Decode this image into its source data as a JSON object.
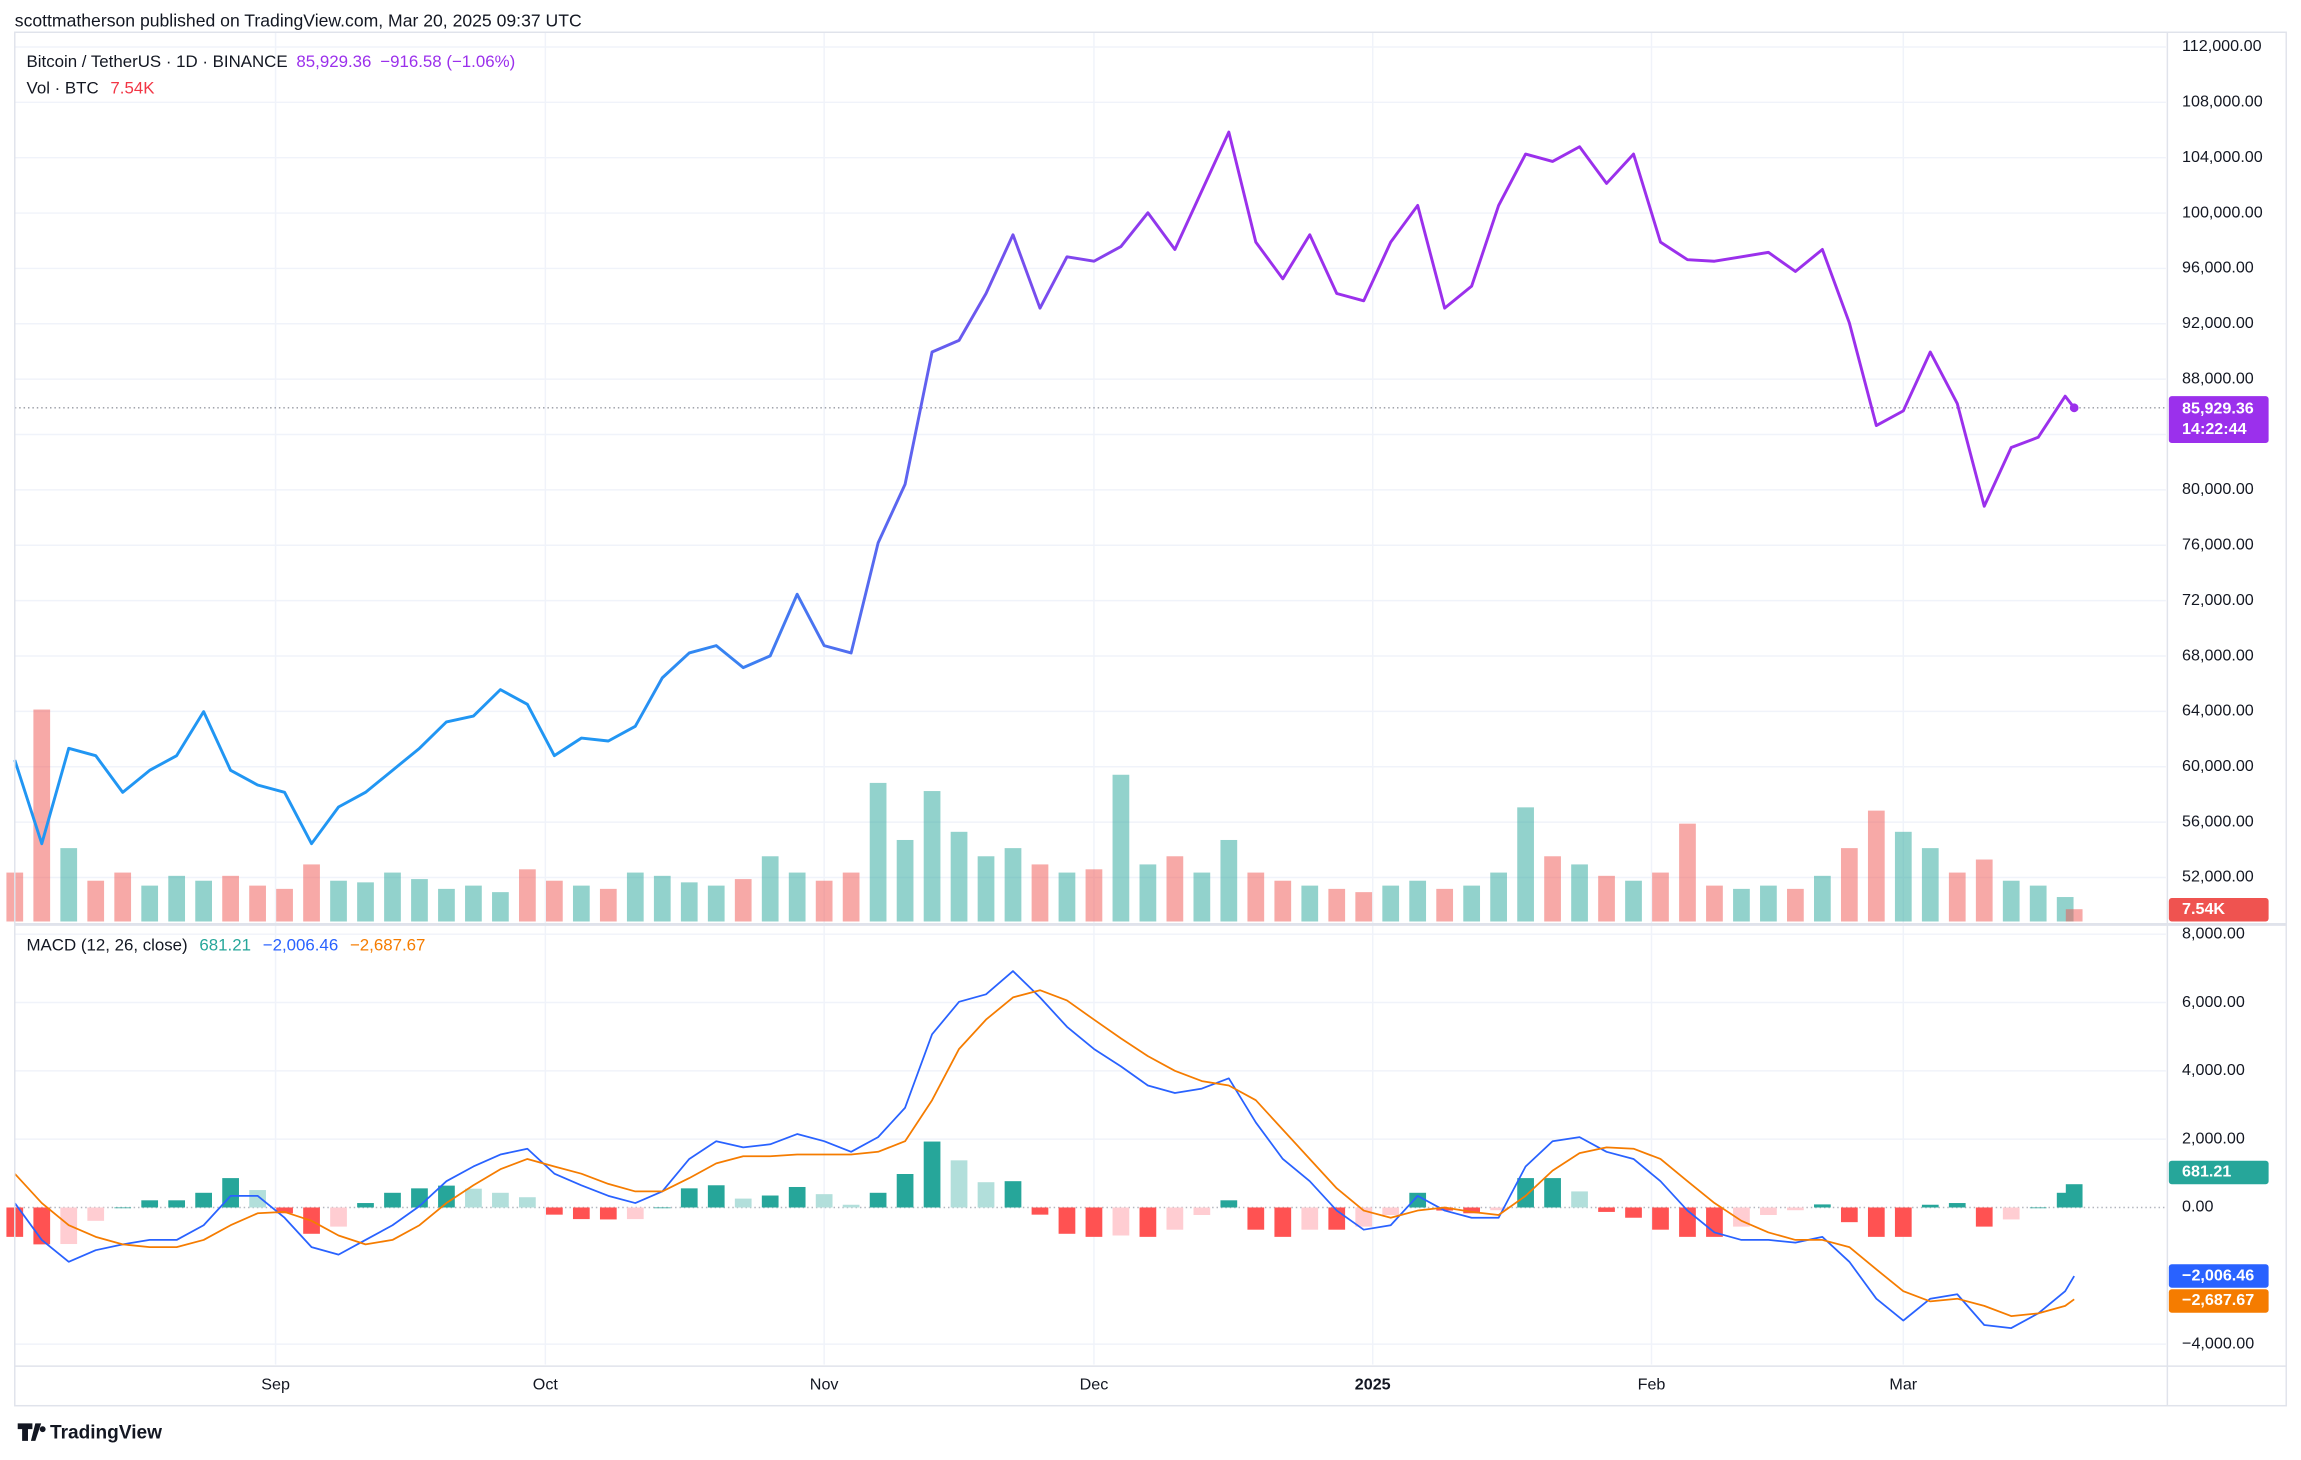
{
  "attribution": "scottmatherson published on TradingView.com, Mar 20, 2025 09:37 UTC",
  "brand": "TradingView",
  "chart_data": {
    "type": "line",
    "title": "Bitcoin / TetherUS · 1D · BINANCE",
    "last_label": "85,929.36",
    "change": "−916.58 (−1.06%)",
    "countdown": "14:22:44",
    "colors": [
      "#2196f3",
      "#9b30ec"
    ],
    "grid": true,
    "x": [
      0,
      3,
      6,
      9,
      12,
      15,
      18,
      21,
      24,
      27,
      30,
      33,
      36,
      39,
      42,
      45,
      48,
      51,
      54,
      57,
      60,
      63,
      66,
      69,
      72,
      75,
      78,
      81,
      84,
      87,
      90,
      93,
      96,
      99,
      102,
      105,
      108,
      111,
      114,
      117,
      120,
      123,
      126,
      129,
      132,
      135,
      138,
      141,
      144,
      147,
      150,
      153,
      156,
      159,
      162,
      165,
      168,
      171,
      174,
      177,
      180,
      183,
      186,
      189,
      192,
      195,
      198,
      201,
      204,
      207,
      210,
      213,
      216,
      219,
      222,
      225,
      228,
      229
    ],
    "xlim": [
      0,
      239.2
    ],
    "xticks": [
      {
        "value": 29,
        "label": "Sep"
      },
      {
        "value": 59,
        "label": "Oct"
      },
      {
        "value": 90,
        "label": "Nov"
      },
      {
        "value": 120,
        "label": "Dec"
      },
      {
        "value": 151,
        "label": "2025",
        "emphasis": true
      },
      {
        "value": 182,
        "label": "Feb"
      },
      {
        "value": 210,
        "label": "Mar"
      }
    ],
    "ylim": [
      48820,
      113060
    ],
    "yticks": [
      {
        "value": 52000,
        "label": "52,000.00"
      },
      {
        "value": 56000,
        "label": "56,000.00"
      },
      {
        "value": 60000,
        "label": "60,000.00"
      },
      {
        "value": 64000,
        "label": "64,000.00"
      },
      {
        "value": 68000,
        "label": "68,000.00"
      },
      {
        "value": 72000,
        "label": "72,000.00"
      },
      {
        "value": 76000,
        "label": "76,000.00"
      },
      {
        "value": 80000,
        "label": "80,000.00"
      },
      {
        "value": 84000,
        "label": "84,000.00"
      },
      {
        "value": 88000,
        "label": "88,000.00"
      },
      {
        "value": 92000,
        "label": "92,000.00"
      },
      {
        "value": 96000,
        "label": "96,000.00"
      },
      {
        "value": 100000,
        "label": "100,000.00"
      },
      {
        "value": 104000,
        "label": "104,000.00"
      },
      {
        "value": 108000,
        "label": "108,000.00"
      },
      {
        "value": 112000,
        "label": "112,000.00"
      }
    ],
    "values": [
      60480,
      54440,
      61330,
      60800,
      58150,
      59740,
      60800,
      63980,
      59740,
      58680,
      58150,
      54440,
      57090,
      58150,
      59740,
      61330,
      63240,
      63660,
      65570,
      64510,
      60800,
      62070,
      61860,
      62920,
      66420,
      68220,
      68750,
      67160,
      68010,
      72460,
      68750,
      68220,
      76170,
      80410,
      89960,
      90800,
      94190,
      98430,
      93130,
      96840,
      96520,
      97580,
      100020,
      97370,
      101610,
      105850,
      97900,
      95250,
      98430,
      94190,
      93660,
      97900,
      100550,
      93130,
      94720,
      100550,
      104260,
      103730,
      104790,
      102140,
      104260,
      97900,
      96630,
      96520,
      96840,
      97160,
      95780,
      97370,
      92070,
      84650,
      85710,
      89960,
      86240,
      78820,
      83060,
      83800,
      86770,
      85929.36
    ],
    "volume": {
      "name": "Vol · BTC",
      "last_label": "7.54K",
      "ylim": [
        0,
        180000
      ],
      "up_color": "#26a69a",
      "down_color": "#ef5350",
      "values": [
        30000,
        130000,
        45000,
        25000,
        30000,
        22000,
        28000,
        25000,
        28000,
        22000,
        20000,
        35000,
        25000,
        24000,
        30000,
        26000,
        20000,
        22000,
        18000,
        32000,
        25000,
        22000,
        20000,
        30000,
        28000,
        24000,
        22000,
        26000,
        40000,
        30000,
        25000,
        30000,
        85000,
        50000,
        80000,
        55000,
        40000,
        45000,
        35000,
        30000,
        32000,
        90000,
        35000,
        40000,
        30000,
        50000,
        30000,
        25000,
        22000,
        20000,
        18000,
        22000,
        25000,
        20000,
        22000,
        30000,
        70000,
        40000,
        35000,
        28000,
        25000,
        30000,
        60000,
        22000,
        20000,
        22000,
        20000,
        28000,
        45000,
        68000,
        55000,
        45000,
        30000,
        38000,
        25000,
        22000,
        15000,
        7540
      ]
    },
    "macd": {
      "title": "MACD (12, 26, close)",
      "ylim": [
        -4600,
        8200
      ],
      "yticks": [
        {
          "value": -4000,
          "label": "−4,000.00"
        },
        {
          "value": 0,
          "label": "0.00"
        },
        {
          "value": 2000,
          "label": "2,000.00"
        },
        {
          "value": 4000,
          "label": "4,000.00"
        },
        {
          "value": 6000,
          "label": "6,000.00"
        },
        {
          "value": 8000,
          "label": "8,000.00"
        }
      ],
      "histogram": {
        "colors": [
          "#26a69a",
          "#b2dfdb",
          "#ffcdd2",
          "#ff5252"
        ],
        "values": [
          -860,
          -1080,
          -1070,
          -390,
          0,
          210,
          210,
          430,
          860,
          510,
          -170,
          -770,
          -560,
          130,
          430,
          560,
          640,
          550,
          430,
          300,
          -210,
          -340,
          -350,
          -340,
          0,
          560,
          650,
          260,
          350,
          600,
          390,
          80,
          430,
          980,
          1930,
          1380,
          740,
          770,
          -210,
          -770,
          -860,
          -820,
          -860,
          -650,
          -220,
          210,
          -650,
          -860,
          -650,
          -650,
          -560,
          -220,
          430,
          -90,
          -170,
          -80,
          860,
          860,
          470,
          -130,
          -300,
          -650,
          -860,
          -860,
          -560,
          -220,
          -80,
          90,
          -430,
          -860,
          -860,
          80,
          130,
          -560,
          -350,
          0,
          430,
          681.21
        ]
      },
      "series": [
        {
          "color": "#2962ff",
          "last_label": "−2,006.46",
          "values": [
            130,
            -950,
            -1590,
            -1250,
            -1080,
            -950,
            -950,
            -520,
            340,
            340,
            -300,
            -1160,
            -1380,
            -950,
            -520,
            40,
            770,
            1200,
            1550,
            1720,
            990,
            650,
            340,
            130,
            470,
            1420,
            1940,
            1760,
            1850,
            2150,
            1940,
            1630,
            2060,
            2920,
            5070,
            6020,
            6240,
            6920,
            6150,
            5290,
            4640,
            4130,
            3570,
            3350,
            3480,
            3780,
            2490,
            1420,
            770,
            -90,
            -650,
            -520,
            340,
            -90,
            -300,
            -300,
            1200,
            1940,
            2060,
            1630,
            1420,
            770,
            -90,
            -730,
            -950,
            -950,
            -1030,
            -860,
            -1590,
            -2670,
            -3310,
            -2670,
            -2540,
            -3440,
            -3530,
            -3100,
            -2450,
            -2006.46
          ]
        },
        {
          "color": "#f57c00",
          "last_label": "−2,687.67",
          "values": [
            990,
            130,
            -520,
            -860,
            -1080,
            -1160,
            -1160,
            -950,
            -520,
            -170,
            -130,
            -390,
            -820,
            -1080,
            -950,
            -520,
            130,
            650,
            1120,
            1420,
            1200,
            990,
            690,
            470,
            470,
            860,
            1290,
            1500,
            1500,
            1550,
            1550,
            1550,
            1630,
            1940,
            3140,
            4640,
            5500,
            6150,
            6360,
            6060,
            5500,
            4950,
            4430,
            4000,
            3700,
            3570,
            3140,
            2280,
            1420,
            560,
            -90,
            -300,
            -90,
            0,
            -130,
            -220,
            340,
            1080,
            1590,
            1760,
            1720,
            1420,
            770,
            130,
            -390,
            -730,
            -950,
            -950,
            -1160,
            -1810,
            -2450,
            -2750,
            -2670,
            -2880,
            -3180,
            -3100,
            -2880,
            -2687.67
          ]
        }
      ]
    }
  }
}
